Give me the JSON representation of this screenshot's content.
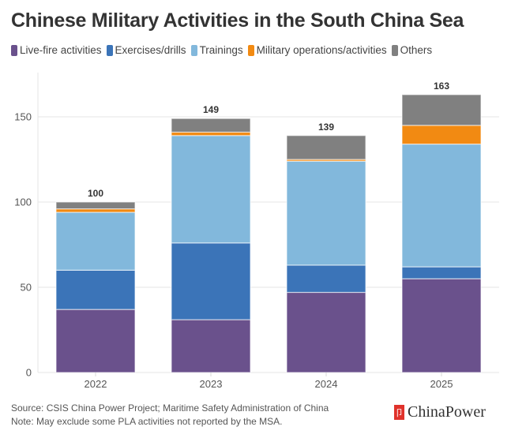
{
  "chart_data": {
    "type": "bar",
    "stacked": true,
    "title": "Chinese Military Activities in the South China Sea",
    "categories": [
      "2022",
      "2023",
      "2024",
      "2025"
    ],
    "series": [
      {
        "name": "Live-fire activities",
        "color": "#6a518c",
        "values": [
          37,
          31,
          47,
          55
        ]
      },
      {
        "name": "Exercises/drills",
        "color": "#3b74b8",
        "values": [
          23,
          45,
          16,
          7
        ]
      },
      {
        "name": "Trainings",
        "color": "#82b8dc",
        "values": [
          34,
          63,
          61,
          72
        ]
      },
      {
        "name": "Military operations/activities",
        "color": "#f28a12",
        "values": [
          2,
          2,
          1,
          11
        ]
      },
      {
        "name": "Others",
        "color": "#808080",
        "values": [
          4,
          8,
          14,
          18
        ]
      }
    ],
    "totals": [
      "100",
      "149",
      "139",
      "163"
    ],
    "yticks": [
      "0",
      "50",
      "100",
      "150"
    ],
    "ylim": [
      0,
      170
    ],
    "xlabel": "",
    "ylabel": "",
    "grid": true,
    "legend_position": "top-left"
  },
  "footer": {
    "source": "Source: CSIS China Power Project; Maritime Safety Administration of China",
    "note": "Note: May exclude some PLA activities not reported by the MSA."
  },
  "brand": {
    "name": "ChinaPower",
    "icon": "chinapower-logo-icon"
  }
}
